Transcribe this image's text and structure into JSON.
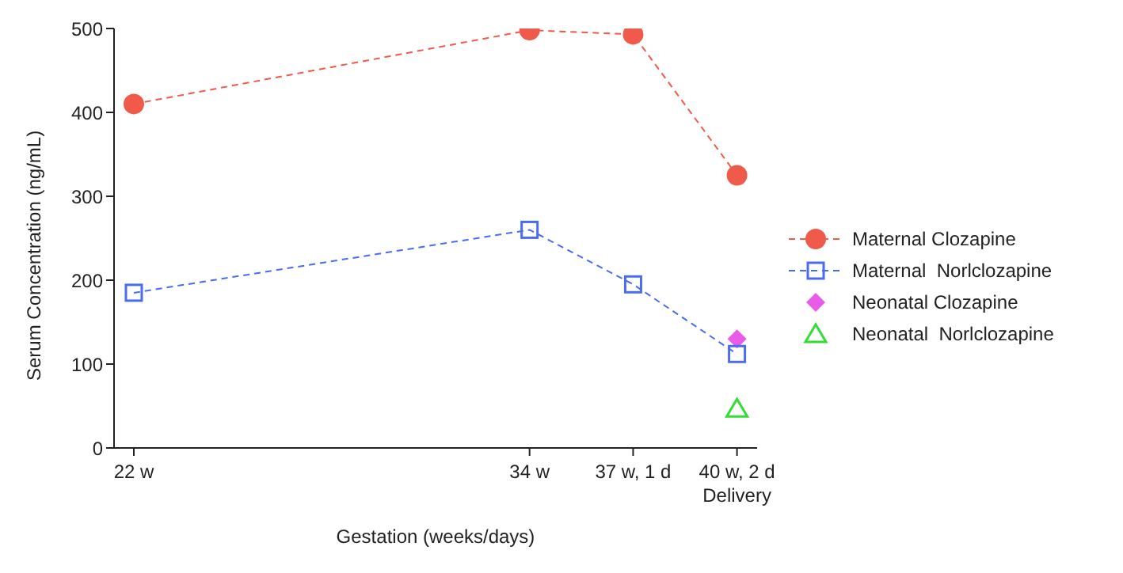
{
  "chart_data": {
    "type": "line",
    "xlabel": "Gestation (weeks/days)",
    "ylabel": "Serum Concentration (ng/mL)",
    "xlim": [
      21.4,
      40.9
    ],
    "xticks": [
      {
        "value": 22,
        "label": "22 w"
      },
      {
        "value": 34,
        "label": "34 w"
      },
      {
        "value": 37.14,
        "label": "37 w, 1 d"
      },
      {
        "value": 40.29,
        "label": "40 w, 2 d\nDelivery"
      }
    ],
    "ylim": [
      0,
      500
    ],
    "yticks": [
      0,
      100,
      200,
      300,
      400,
      500
    ],
    "legend": "right",
    "line_style": "dashed",
    "series": [
      {
        "name": "Maternal Clozapine",
        "color": "#f05a4a",
        "marker": "circle",
        "x": [
          22,
          34,
          37.14,
          40.29
        ],
        "values": [
          410,
          498,
          493,
          325
        ]
      },
      {
        "name": "Maternal  Norlclozapine",
        "color": "#4a6cf0",
        "marker": "square",
        "x": [
          22,
          34,
          37.14,
          40.29
        ],
        "values": [
          185,
          260,
          195,
          112
        ]
      },
      {
        "name": "Neonatal Clozapine",
        "type": "scatter",
        "color": "#e85ce8",
        "marker": "diamond",
        "x": [
          40.29
        ],
        "values": [
          130
        ]
      },
      {
        "name": "Neonatal  Norlclozapine",
        "type": "scatter",
        "color": "#33dd33",
        "marker": "triangle",
        "x": [
          40.29
        ],
        "values": [
          47
        ]
      }
    ]
  }
}
